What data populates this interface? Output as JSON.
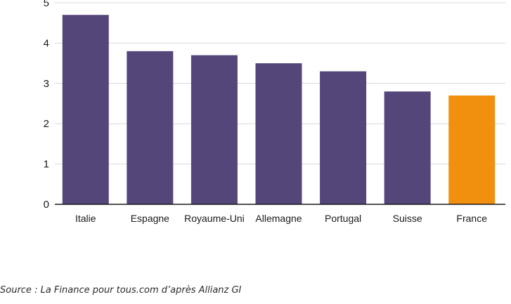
{
  "chart_data": {
    "type": "bar",
    "categories": [
      "Italie",
      "Espagne",
      "Royaume-Uni",
      "Allemagne",
      "Portugal",
      "Suisse",
      "France"
    ],
    "values": [
      4.7,
      3.8,
      3.7,
      3.5,
      3.3,
      2.8,
      2.7
    ],
    "ylim": [
      0,
      5
    ],
    "yticks": [
      "0",
      "1",
      "2",
      "3",
      "4",
      "5"
    ],
    "grid": true,
    "colors": {
      "default": "#55467a",
      "highlight": "#f0900e",
      "highlight_category": "France",
      "grid": "#d9d9d9",
      "axis": "#1a1a1a"
    }
  },
  "source": "Source : La Finance pour tous.com d’après Allianz GI"
}
